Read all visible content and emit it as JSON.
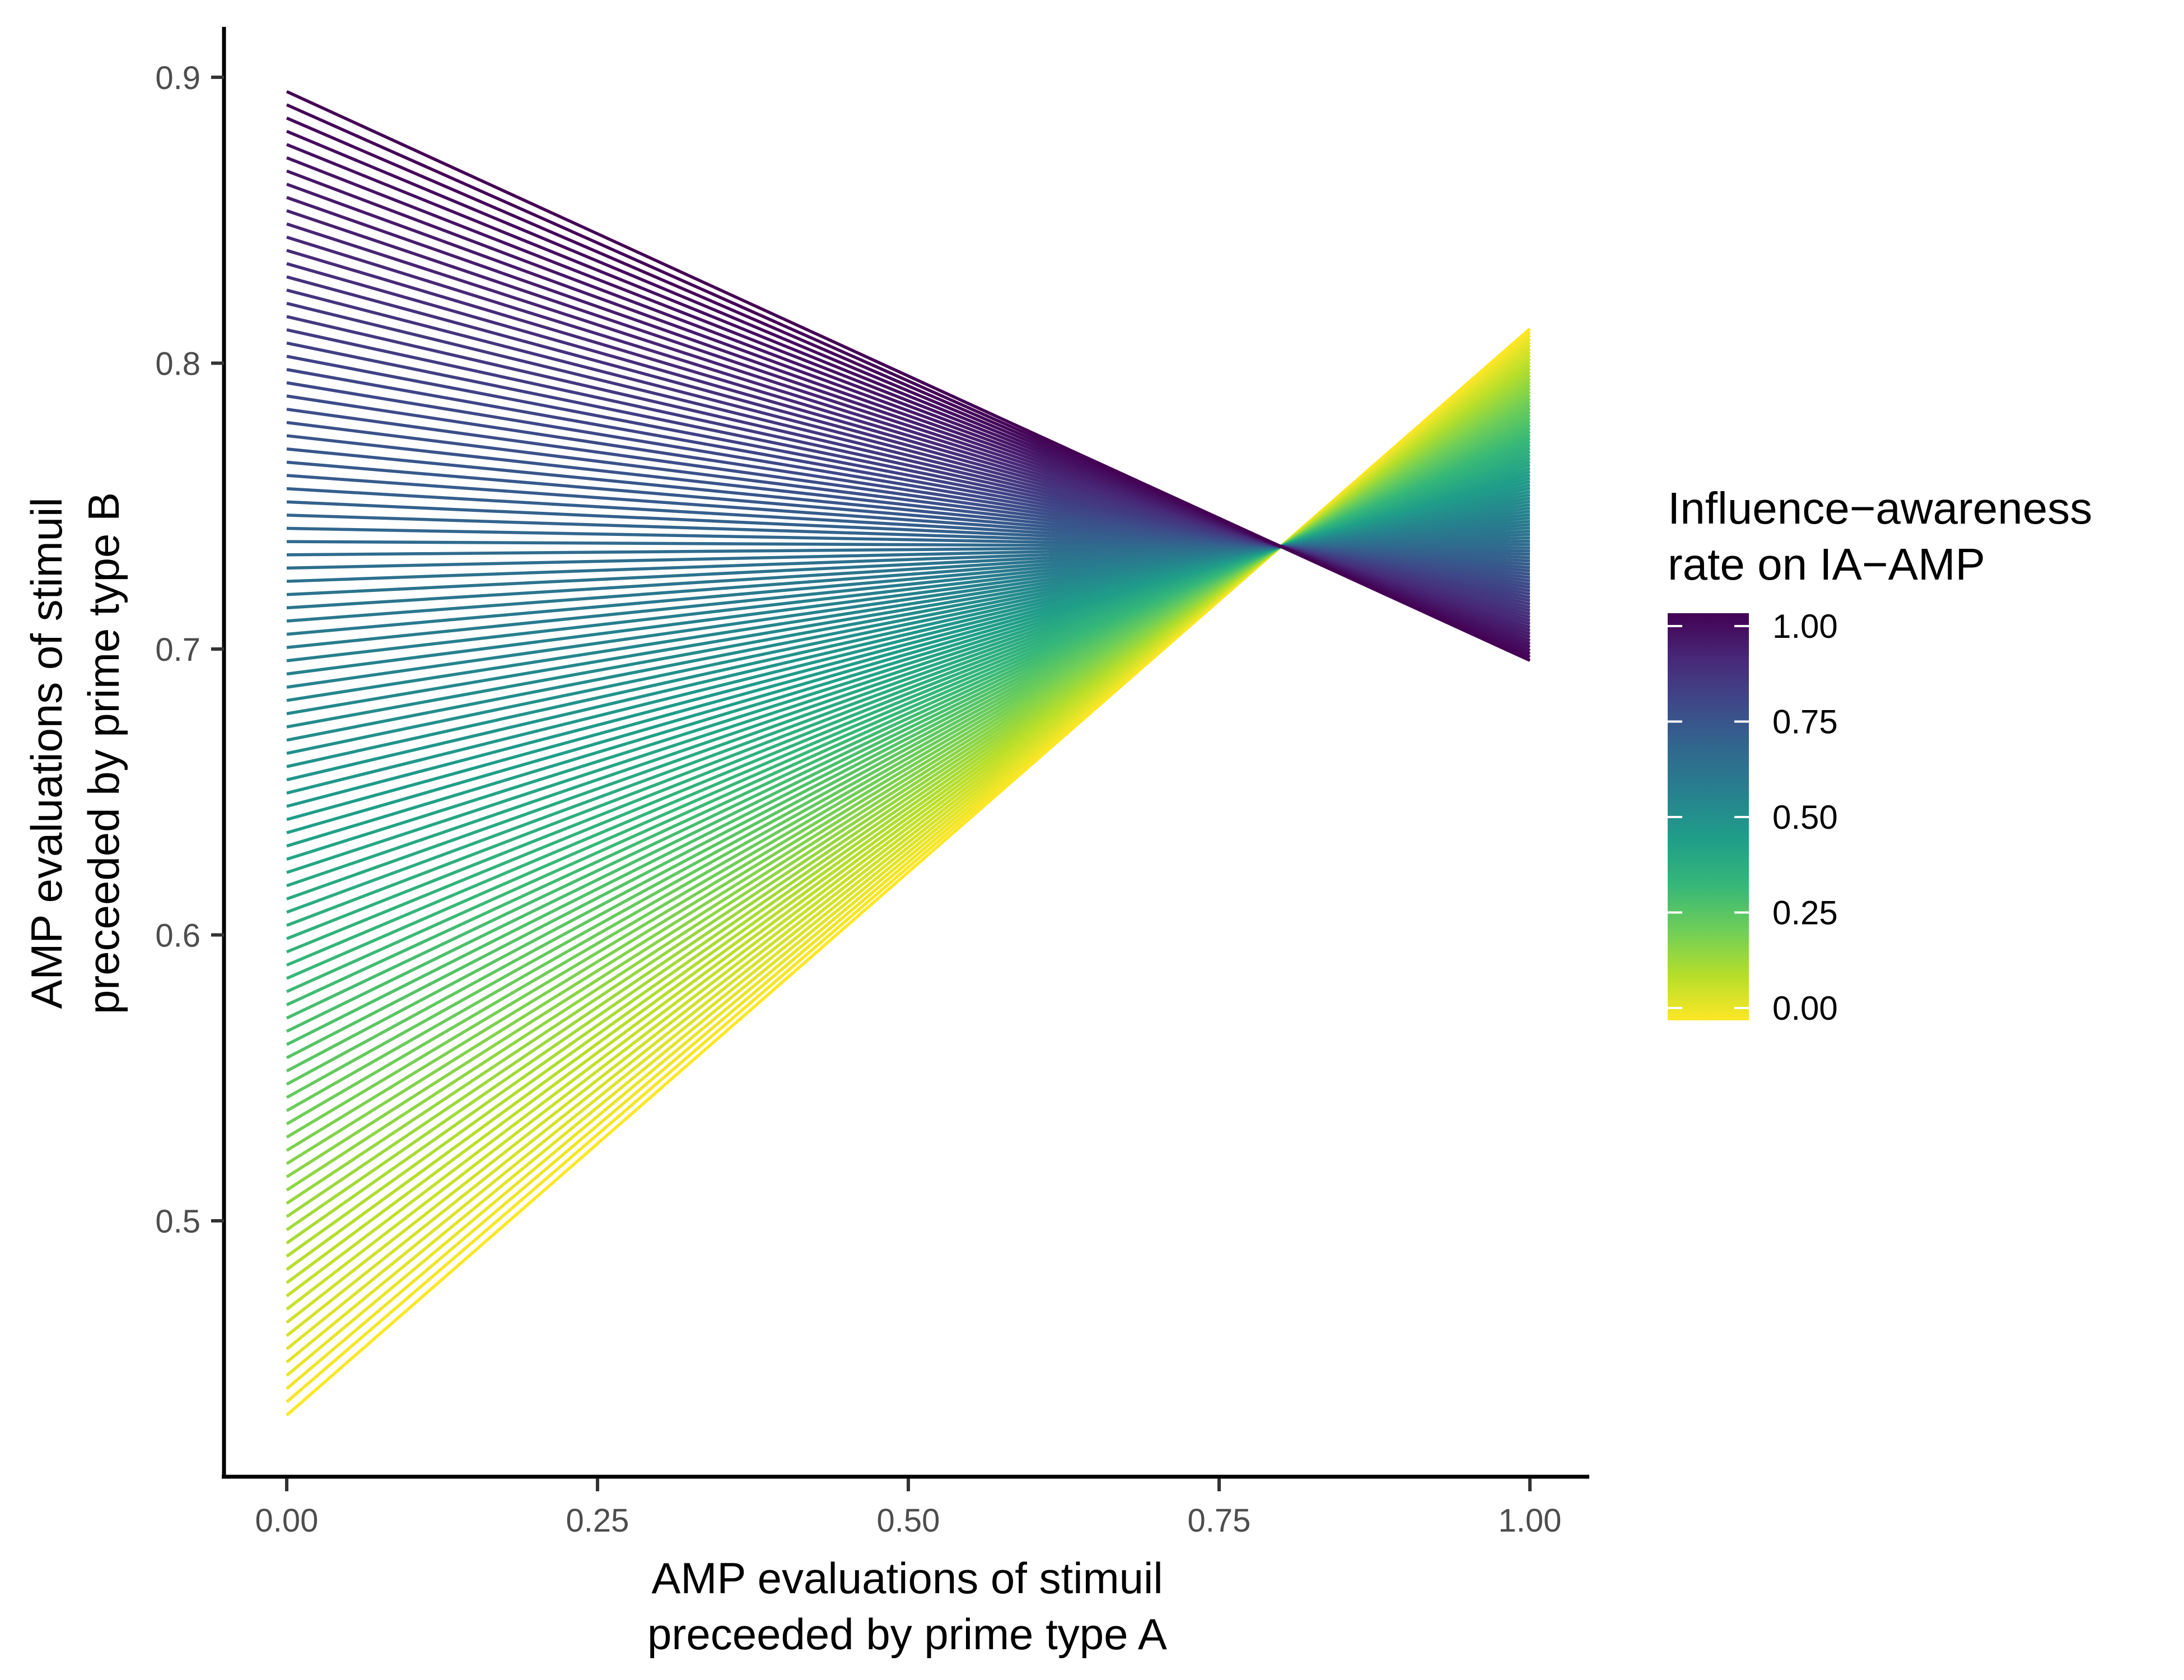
{
  "chart_data": {
    "type": "line",
    "xlabel": [
      "AMP evaluations of stimuil",
      "preceeded by prime type A"
    ],
    "ylabel": [
      "AMP evaluations of stimuil",
      "preceeded by prime type B"
    ],
    "xlim": [
      -0.05,
      1.05
    ],
    "ylim": [
      0.41,
      0.918
    ],
    "x_ticks": [
      0.0,
      0.25,
      0.5,
      0.75,
      1.0
    ],
    "x_tick_labels": [
      "0.00",
      "0.25",
      "0.50",
      "0.75",
      "1.00"
    ],
    "y_ticks": [
      0.5,
      0.6,
      0.7,
      0.8,
      0.9
    ],
    "y_tick_labels": [
      "0.5",
      "0.6",
      "0.7",
      "0.8",
      "0.9"
    ],
    "grid": false,
    "series_family": {
      "description_variable": "Influence-awareness rate on IA-AMP",
      "rate_min": 0.0,
      "rate_max": 1.0,
      "count": 101,
      "x": [
        0.0,
        1.0
      ],
      "y_at_x0": {
        "rate_0": 0.432,
        "rate_1": 0.895
      },
      "y_at_x1": {
        "rate_0": 0.812,
        "rate_1": 0.696
      }
    },
    "legend": {
      "title": [
        "Influence−awareness",
        "rate on IA−AMP"
      ],
      "placement": "right",
      "colorbar_ticks": [
        1.0,
        0.75,
        0.5,
        0.25,
        0.0
      ],
      "colorbar_tick_labels": [
        "1.00",
        "0.75",
        "0.50",
        "0.25",
        "0.00"
      ],
      "colormap": "viridis",
      "colors": [
        "#fde725",
        "#b5de2b",
        "#6ece58",
        "#35b779",
        "#1f9e89",
        "#26828e",
        "#31688e",
        "#3e4989",
        "#482878",
        "#440154"
      ]
    }
  }
}
